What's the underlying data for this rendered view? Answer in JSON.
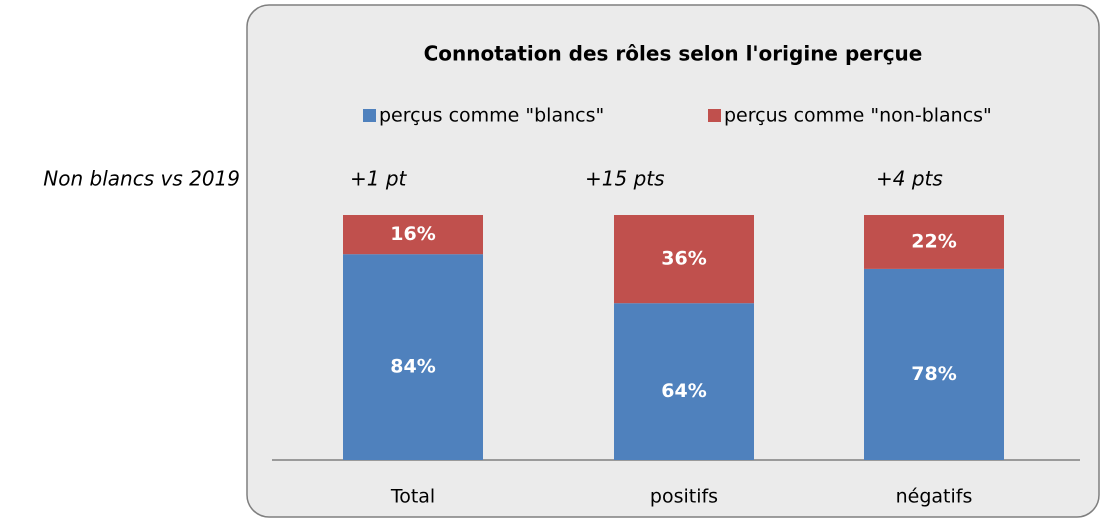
{
  "chart_data": {
    "type": "bar",
    "stacked": true,
    "title": "Connotation des rôles selon l'origine perçue",
    "categories": [
      "Total",
      "positifs",
      "négatifs"
    ],
    "series": [
      {
        "name": "perçus comme \"blancs\"",
        "color": "#4f81bd",
        "values": [
          84,
          64,
          78
        ],
        "value_labels": [
          "84%",
          "64%",
          "78%"
        ]
      },
      {
        "name": "perçus comme \"non-blancs\"",
        "color": "#c0504d",
        "values": [
          16,
          36,
          22
        ],
        "value_labels": [
          "16%",
          "36%",
          "22%"
        ]
      }
    ],
    "ylim": [
      0,
      100
    ],
    "legend": "top",
    "annotations": [
      "Non blancs vs 2019",
      "+1 pt",
      "+15 pts",
      "+4 pts"
    ]
  }
}
